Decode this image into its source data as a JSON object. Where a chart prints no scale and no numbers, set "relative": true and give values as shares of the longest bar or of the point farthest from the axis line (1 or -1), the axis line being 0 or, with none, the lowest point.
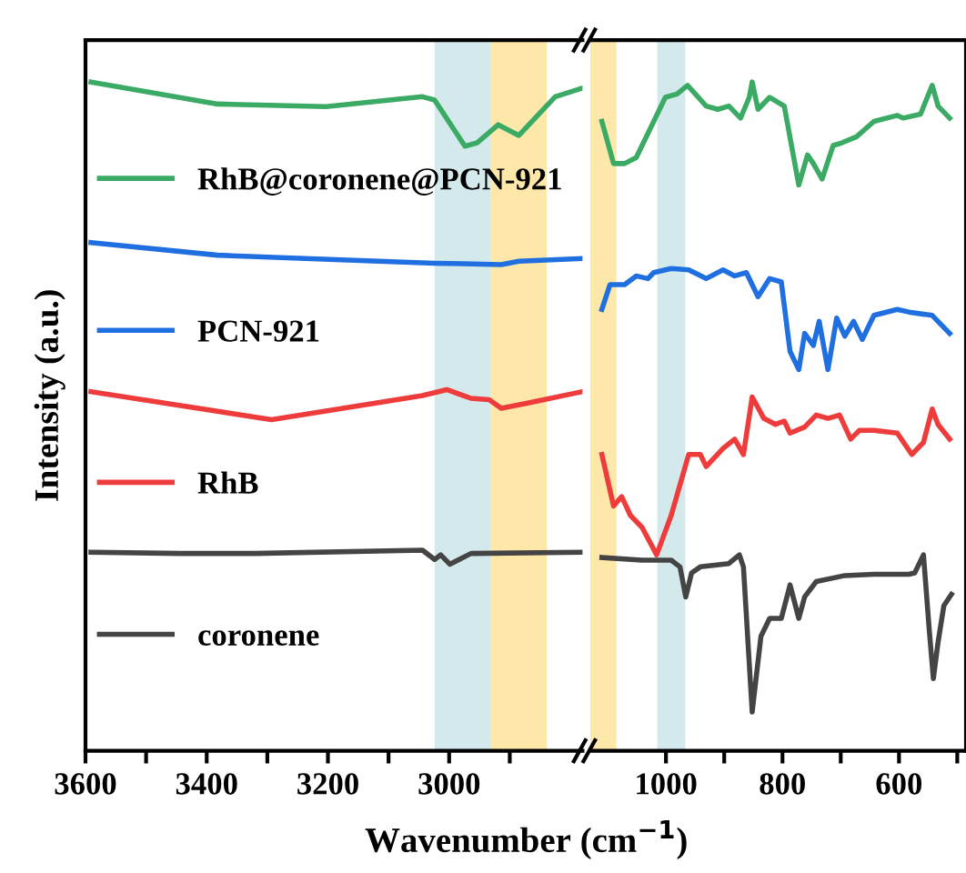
{
  "chart_data": [
    {
      "type": "line",
      "relative": true,
      "ylabel": "Intensity (a.u.)",
      "xlabel": "Wavenumber (cm$^{−1}$)",
      "tick_labels": "x",
      "legend": "left",
      "grid": false,
      "xlim": [
        3600,
        2780
      ],
      "xticks": [
        3600,
        {
          "value": 3500,
          "label": null
        },
        3400,
        {
          "value": 3300,
          "label": null
        },
        3200,
        {
          "value": 3100,
          "label": null
        },
        3000,
        {
          "value": 2900,
          "label": null
        }
      ],
      "bands": [
        {
          "axis": "x",
          "from": 3024,
          "to": 2931,
          "color": "#d4e9ec"
        },
        {
          "axis": "x",
          "from": 2931,
          "to": 2839,
          "color": "#fde7a9"
        }
      ],
      "series": [
        {
          "name": "RhB@coronene@PCN-921",
          "color": "#3aaa64",
          "x": [
            3591,
            3382,
            3203,
            3044,
            3024,
            2974,
            2954,
            2919,
            2885,
            2825,
            2780
          ],
          "values": [
            1.0,
            0.967,
            0.963,
            0.978,
            0.973,
            0.904,
            0.909,
            0.936,
            0.92,
            0.978,
            0.991
          ]
        },
        {
          "name": "PCN-921",
          "color": "#1f6fe0",
          "x": [
            3591,
            3382,
            3024,
            2914,
            2885,
            2780
          ],
          "values": [
            0.76,
            0.741,
            0.729,
            0.727,
            0.732,
            0.736
          ]
        },
        {
          "name": "RhB",
          "color": "#ee3b3b",
          "x": [
            3591,
            3293,
            3044,
            3004,
            2964,
            2934,
            2914,
            2865,
            2780
          ],
          "values": [
            0.537,
            0.495,
            0.531,
            0.54,
            0.527,
            0.525,
            0.512,
            0.521,
            0.537
          ]
        },
        {
          "name": "coronene",
          "color": "#444444",
          "x": [
            3591,
            3442,
            3322,
            3044,
            3024,
            3014,
            2999,
            2964,
            2780
          ],
          "values": [
            0.297,
            0.295,
            0.295,
            0.3,
            0.286,
            0.293,
            0.279,
            0.295,
            0.297
          ]
        }
      ]
    },
    {
      "type": "line",
      "relative": true,
      "tick_labels": "x",
      "grid": false,
      "xlim": [
        1130,
        485
      ],
      "xticks": [
        1000,
        {
          "value": 900,
          "label": null
        },
        800,
        {
          "value": 700,
          "label": null
        },
        600,
        {
          "value": 500,
          "label": null
        }
      ],
      "bands": [
        {
          "axis": "x",
          "from": 1130,
          "to": 1085,
          "color": "#fde7a9"
        },
        {
          "axis": "x",
          "from": 1015,
          "to": 967,
          "color": "#d4e9ec"
        }
      ],
      "series": [
        {
          "color": "#3aaa64",
          "x": [
            1110,
            1090,
            1071,
            1051,
            1031,
            1001,
            981,
            963,
            931,
            911,
            892,
            872,
            857,
            852,
            842,
            822,
            797,
            772,
            757,
            747,
            732,
            713,
            698,
            673,
            643,
            603,
            593,
            563,
            543,
            533,
            513
          ],
          "values": [
            0.941,
            0.878,
            0.878,
            0.887,
            0.923,
            0.977,
            0.982,
            0.995,
            0.964,
            0.959,
            0.964,
            0.946,
            0.977,
            1.0,
            0.959,
            0.977,
            0.964,
            0.846,
            0.891,
            0.878,
            0.855,
            0.905,
            0.909,
            0.918,
            0.941,
            0.95,
            0.946,
            0.952,
            0.995,
            0.964,
            0.946
          ]
        },
        {
          "color": "#1f6fe0",
          "x": [
            1110,
            1096,
            1071,
            1051,
            1031,
            1021,
            991,
            961,
            931,
            902,
            882,
            862,
            842,
            822,
            802,
            787,
            772,
            762,
            747,
            737,
            722,
            707,
            693,
            678,
            663,
            643,
            603,
            583,
            543,
            513
          ],
          "values": [
            0.66,
            0.697,
            0.697,
            0.71,
            0.706,
            0.715,
            0.721,
            0.719,
            0.706,
            0.719,
            0.71,
            0.715,
            0.679,
            0.706,
            0.701,
            0.597,
            0.57,
            0.624,
            0.606,
            0.642,
            0.57,
            0.647,
            0.62,
            0.642,
            0.615,
            0.651,
            0.66,
            0.656,
            0.651,
            0.624
          ]
        },
        {
          "color": "#ee3b3b",
          "x": [
            1110,
            1090,
            1076,
            1061,
            1041,
            1016,
            991,
            961,
            941,
            931,
            902,
            882,
            867,
            852,
            832,
            812,
            797,
            787,
            762,
            742,
            722,
            702,
            683,
            668,
            643,
            603,
            578,
            558,
            543,
            533,
            513
          ],
          "values": [
            0.443,
            0.366,
            0.38,
            0.352,
            0.334,
            0.293,
            0.352,
            0.443,
            0.443,
            0.425,
            0.452,
            0.466,
            0.443,
            0.529,
            0.497,
            0.488,
            0.493,
            0.475,
            0.484,
            0.502,
            0.497,
            0.502,
            0.466,
            0.479,
            0.479,
            0.475,
            0.443,
            0.461,
            0.511,
            0.488,
            0.466
          ]
        },
        {
          "color": "#444444",
          "x": [
            1110,
            1041,
            991,
            976,
            966,
            956,
            941,
            892,
            874,
            867,
            852,
            837,
            822,
            802,
            787,
            772,
            762,
            742,
            693,
            643,
            583,
            573,
            558,
            548,
            541,
            533,
            523,
            510
          ],
          "values": [
            0.289,
            0.285,
            0.285,
            0.275,
            0.23,
            0.266,
            0.275,
            0.28,
            0.293,
            0.275,
            0.058,
            0.171,
            0.198,
            0.198,
            0.248,
            0.198,
            0.23,
            0.253,
            0.262,
            0.264,
            0.264,
            0.266,
            0.293,
            0.18,
            0.108,
            0.162,
            0.217,
            0.234
          ]
        }
      ]
    }
  ]
}
